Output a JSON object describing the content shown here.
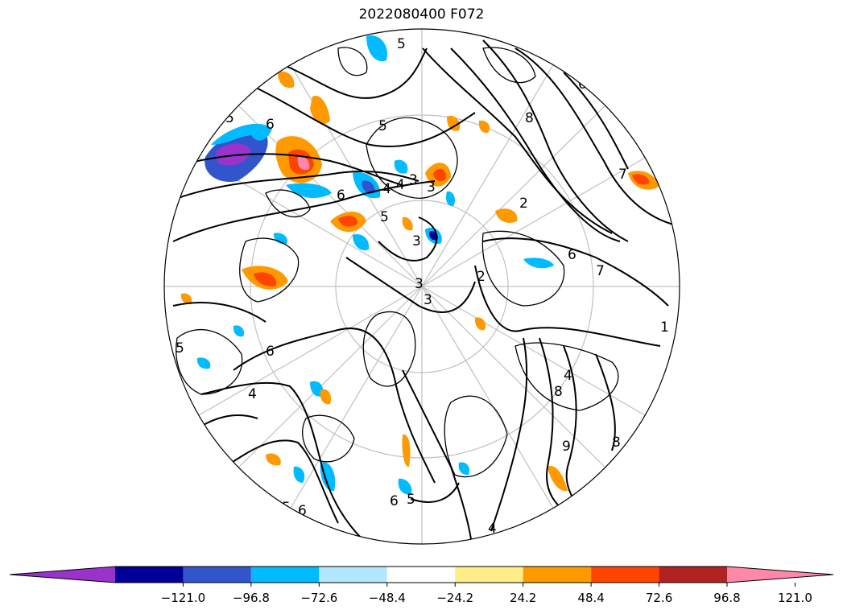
{
  "title": "2022080400 F072",
  "colorbar": {
    "segments": [
      {
        "color": "#9933cc"
      },
      {
        "color": "#000099"
      },
      {
        "color": "#3355cc"
      },
      {
        "color": "#00bbff"
      },
      {
        "color": "#b3e6ff"
      },
      {
        "color": "#ffffff"
      },
      {
        "color": "#ffee88"
      },
      {
        "color": "#ff9900"
      },
      {
        "color": "#ff4400"
      },
      {
        "color": "#b22222"
      },
      {
        "color": "#ff88aa"
      }
    ],
    "tick_labels": [
      "−121.0",
      "−96.8",
      "−72.6",
      "−48.4",
      "−24.2",
      "24.2",
      "48.4",
      "72.6",
      "96.8",
      "121.0"
    ]
  },
  "contour_labels": [
    "5",
    "6",
    "4",
    "5",
    "6",
    "5",
    "4",
    "3",
    "3",
    "3",
    "5",
    "4",
    "3",
    "3",
    "2",
    "2",
    "8",
    "7",
    "6",
    "6",
    "7",
    "1",
    "4",
    "8",
    "9",
    "8",
    "5",
    "6",
    "4",
    "5",
    "6",
    "6",
    "5"
  ],
  "colors": {
    "grid": "#c0c0c0",
    "coastline": "#000000",
    "contour": "#000000"
  }
}
